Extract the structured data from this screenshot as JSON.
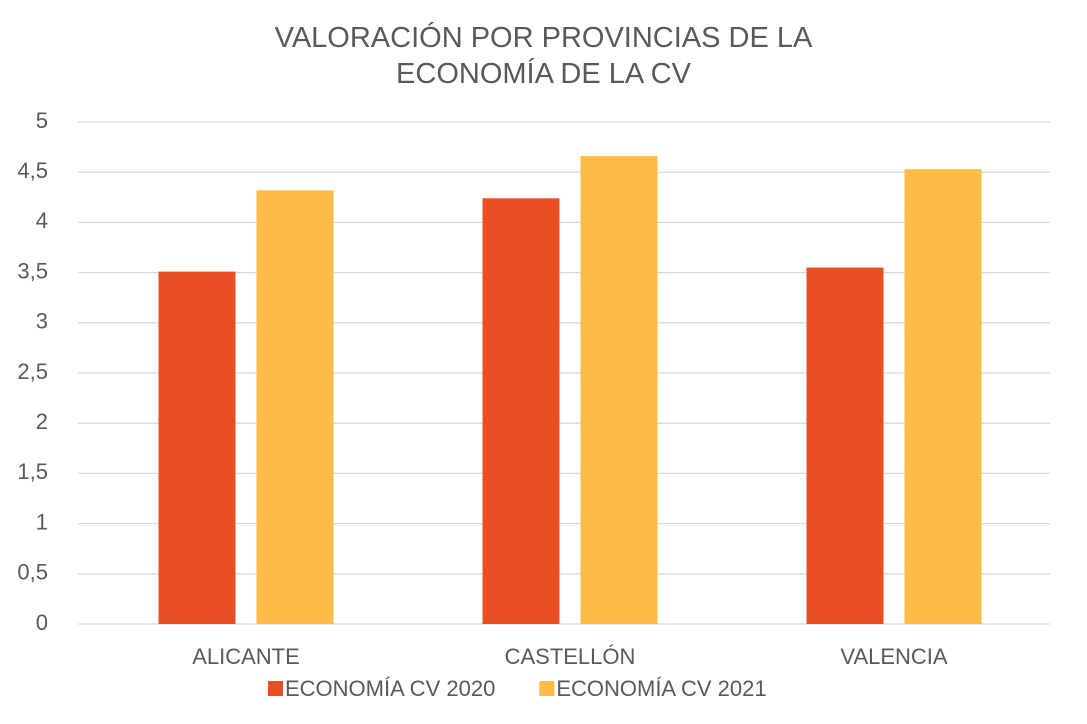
{
  "chart_data": {
    "type": "bar",
    "title": "VALORACIÓN POR PROVINCIAS DE LA ECONOMÍA DE LA CV",
    "categories": [
      "ALICANTE",
      "CASTELLÓN",
      "VALENCIA"
    ],
    "series": [
      {
        "name": "ECONOMÍA CV 2020",
        "color": "#e84e24",
        "values": [
          3.51,
          4.24,
          3.55
        ]
      },
      {
        "name": "ECONOMÍA CV 2021",
        "color": "#fdbb47",
        "values": [
          4.32,
          4.66,
          4.53
        ]
      }
    ],
    "ylim": [
      0,
      5
    ],
    "yticks": [
      0,
      {
        "value": 0.5,
        "label": "0,5"
      },
      1,
      {
        "value": 1.5,
        "label": "1,5"
      },
      2,
      {
        "value": 2.5,
        "label": "2,5"
      },
      3,
      {
        "value": 3.5,
        "label": "3,5"
      },
      4,
      {
        "value": 4.5,
        "label": "4,5"
      },
      5
    ],
    "grid": true,
    "legend": "bottom"
  }
}
